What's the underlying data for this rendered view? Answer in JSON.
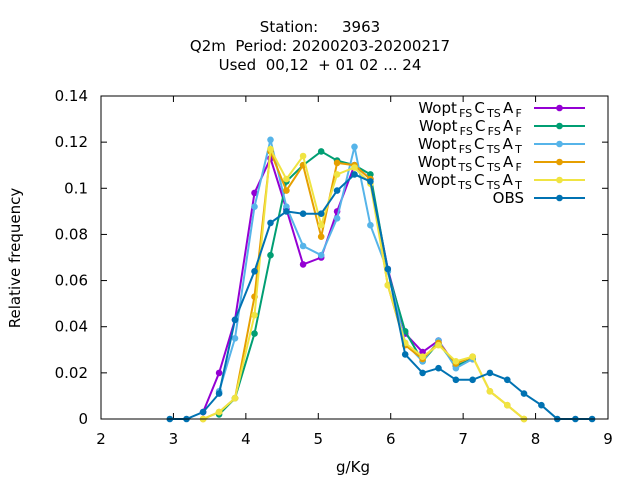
{
  "title_lines": [
    "Station:     3963",
    "Q2m  Period: 20200203-20200217",
    "Used  00,12  + 01 02 ... 24"
  ],
  "chart_data": {
    "type": "line",
    "xlabel": "g/Kg",
    "ylabel": "Relative frequency",
    "xlim": [
      2,
      9
    ],
    "ylim": [
      0,
      0.14
    ],
    "xticks": [
      2,
      3,
      4,
      5,
      6,
      7,
      8,
      9
    ],
    "yticks": [
      0,
      0.02,
      0.04,
      0.06,
      0.08,
      0.1,
      0.12,
      0.14
    ],
    "legend_position": "top-right",
    "series": [
      {
        "name": "Wopt_FS C_TS A_F",
        "legend": [
          [
            "Wopt",
            ""
          ],
          [
            "FS",
            "sub"
          ],
          [
            "C",
            ""
          ],
          [
            "TS",
            "sub"
          ],
          [
            "A",
            ""
          ],
          [
            "F",
            "sub"
          ]
        ],
        "color": "#9400d3",
        "x": [
          3.41,
          3.63,
          3.85,
          4.12,
          4.34,
          4.56,
          4.79,
          5.04,
          5.26,
          5.5,
          5.72,
          5.96,
          6.2,
          6.44,
          6.66,
          6.9,
          7.13
        ],
        "y": [
          0.003,
          0.02,
          0.043,
          0.098,
          0.113,
          0.091,
          0.067,
          0.07,
          0.09,
          0.11,
          0.104,
          0.065,
          0.037,
          0.029,
          0.034,
          0.023,
          0.026
        ]
      },
      {
        "name": "Wopt_FS C_FS A_F",
        "legend": [
          [
            "Wopt",
            ""
          ],
          [
            "FS",
            "sub"
          ],
          [
            "C",
            ""
          ],
          [
            "FS",
            "sub"
          ],
          [
            "A",
            ""
          ],
          [
            "F",
            "sub"
          ]
        ],
        "color": "#009e73",
        "x": [
          3.63,
          3.85,
          4.12,
          4.34,
          4.56,
          4.79,
          5.04,
          5.26,
          5.5,
          5.72,
          5.96,
          6.2,
          6.44,
          6.66,
          6.9,
          7.13
        ],
        "y": [
          0.002,
          0.009,
          0.037,
          0.071,
          0.103,
          0.11,
          0.116,
          0.112,
          0.11,
          0.106,
          0.064,
          0.038,
          0.025,
          0.033,
          0.023,
          0.026
        ]
      },
      {
        "name": "Wopt_FS C_TS A_T",
        "legend": [
          [
            "Wopt",
            ""
          ],
          [
            "FS",
            "sub"
          ],
          [
            "C",
            ""
          ],
          [
            "TS",
            "sub"
          ],
          [
            "A",
            ""
          ],
          [
            "T",
            "sub"
          ]
        ],
        "color": "#56b4e9",
        "x": [
          3.63,
          3.85,
          4.12,
          4.34,
          4.56,
          4.79,
          5.04,
          5.26,
          5.5,
          5.72,
          5.96,
          6.2,
          6.44,
          6.66,
          6.9,
          7.13
        ],
        "y": [
          0.012,
          0.035,
          0.092,
          0.121,
          0.092,
          0.075,
          0.071,
          0.087,
          0.118,
          0.084,
          0.064,
          0.033,
          0.025,
          0.034,
          0.022,
          0.026
        ]
      },
      {
        "name": "Wopt_TS C_TS A_F",
        "legend": [
          [
            "Wopt",
            ""
          ],
          [
            "TS",
            "sub"
          ],
          [
            "C",
            ""
          ],
          [
            "TS",
            "sub"
          ],
          [
            "A",
            ""
          ],
          [
            "F",
            "sub"
          ]
        ],
        "color": "#e69f00",
        "x": [
          3.41,
          3.63,
          3.85,
          4.12,
          4.34,
          4.56,
          4.79,
          5.04,
          5.26,
          5.5,
          5.72,
          5.96,
          6.2,
          6.44,
          6.66,
          6.9,
          7.13,
          7.37,
          7.61,
          7.84
        ],
        "y": [
          0.0,
          0.003,
          0.009,
          0.053,
          0.116,
          0.099,
          0.11,
          0.079,
          0.111,
          0.11,
          0.104,
          0.058,
          0.032,
          0.026,
          0.033,
          0.024,
          0.027,
          0.012,
          0.006,
          0.0
        ]
      },
      {
        "name": "Wopt_TS C_TS A_T",
        "legend": [
          [
            "Wopt",
            ""
          ],
          [
            "TS",
            "sub"
          ],
          [
            "C",
            ""
          ],
          [
            "TS",
            "sub"
          ],
          [
            "A",
            ""
          ],
          [
            "T",
            "sub"
          ]
        ],
        "color": "#f0e442",
        "x": [
          3.41,
          3.63,
          3.85,
          4.12,
          4.34,
          4.56,
          4.79,
          5.04,
          5.26,
          5.5,
          5.72,
          5.96,
          6.2,
          6.44,
          6.66,
          6.9,
          7.13,
          7.37,
          7.61,
          7.84
        ],
        "y": [
          0.0,
          0.003,
          0.009,
          0.045,
          0.117,
          0.104,
          0.114,
          0.084,
          0.106,
          0.109,
          0.102,
          0.058,
          0.033,
          0.027,
          0.032,
          0.025,
          0.027,
          0.012,
          0.006,
          0.0
        ]
      },
      {
        "name": "OBS",
        "legend": [
          [
            "OBS",
            ""
          ]
        ],
        "color": "#0072b2",
        "x": [
          2.95,
          3.18,
          3.41,
          3.63,
          3.85,
          4.12,
          4.34,
          4.56,
          4.79,
          5.04,
          5.26,
          5.5,
          5.72,
          5.96,
          6.2,
          6.44,
          6.66,
          6.9,
          7.13,
          7.37,
          7.61,
          7.84,
          8.08,
          8.3,
          8.55,
          8.78
        ],
        "y": [
          0.0,
          0.0,
          0.003,
          0.011,
          0.043,
          0.064,
          0.085,
          0.09,
          0.089,
          0.089,
          0.099,
          0.106,
          0.103,
          0.065,
          0.028,
          0.02,
          0.022,
          0.017,
          0.017,
          0.02,
          0.017,
          0.011,
          0.006,
          0.0,
          0.0,
          0.0
        ]
      }
    ]
  }
}
